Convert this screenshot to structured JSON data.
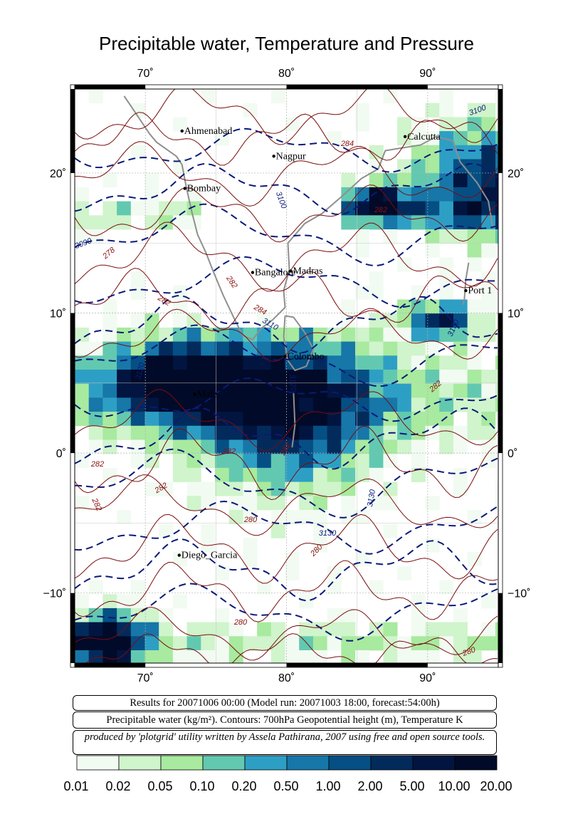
{
  "title": "Precipitable water, Temperature and Pressure",
  "map": {
    "lon_ticks": [
      {
        "value": 70,
        "label": "70˚"
      },
      {
        "value": 80,
        "label": "80˚"
      },
      {
        "value": 90,
        "label": "90˚"
      }
    ],
    "lat_ticks": [
      {
        "value": 20,
        "label": "20˚"
      },
      {
        "value": 10,
        "label": "10˚"
      },
      {
        "value": 0,
        "label": "0˚"
      },
      {
        "value": -10,
        "label": "−10˚"
      }
    ],
    "lon_range": [
      65,
      95
    ],
    "lat_range": [
      -15,
      26
    ],
    "cities": [
      {
        "name": "Ahmenabad",
        "lon": 72.6,
        "lat": 23.0
      },
      {
        "name": "Nagpur",
        "lon": 79.1,
        "lat": 21.2
      },
      {
        "name": "Calcutta",
        "lon": 88.4,
        "lat": 22.6
      },
      {
        "name": "Bombay",
        "lon": 72.8,
        "lat": 18.9
      },
      {
        "name": "Bangalore",
        "lon": 77.6,
        "lat": 12.9
      },
      {
        "name": "Madras",
        "lon": 80.3,
        "lat": 13.0
      },
      {
        "name": "Port 1",
        "lon": 92.7,
        "lat": 11.6
      },
      {
        "name": "Colombo",
        "lon": 79.9,
        "lat": 6.9
      },
      {
        "name": "Male",
        "lon": 73.5,
        "lat": 4.2
      },
      {
        "name": "Diego_Garcia",
        "lon": 72.4,
        "lat": -7.3
      }
    ],
    "contour_labels": [
      "3100",
      "3090",
      "3100",
      "3110",
      "3120",
      "3120",
      "3130",
      "3130",
      "3130",
      "284",
      "284",
      "282",
      "282",
      "282",
      "282",
      "282",
      "282",
      "282",
      "282",
      "282",
      "280",
      "280",
      "280",
      "278",
      "280"
    ]
  },
  "info": {
    "line1": "Results for 20071006 00:00 (Model run: 20071003 18:00, forecast:54:00h)",
    "line2": "Precipitable water (kg/m²).  Contours: 700hPa Geopotential height (m), Temperature K",
    "line3": "produced by 'plotgrid' utility written by Assela Pathirana, 2007 using free and open source tools."
  },
  "colorbar": {
    "labels": [
      "0.01",
      "0.02",
      "0.05",
      "0.10",
      "0.20",
      "0.50",
      "1.00",
      "2.00",
      "5.00",
      "10.00",
      "20.00"
    ],
    "colors": [
      "#f2fbf2",
      "#d0f4cc",
      "#a8ea9f",
      "#62c9b0",
      "#2e9fc4",
      "#1677a8",
      "#054f84",
      "#022b5c",
      "#011540",
      "#010a28"
    ]
  }
}
